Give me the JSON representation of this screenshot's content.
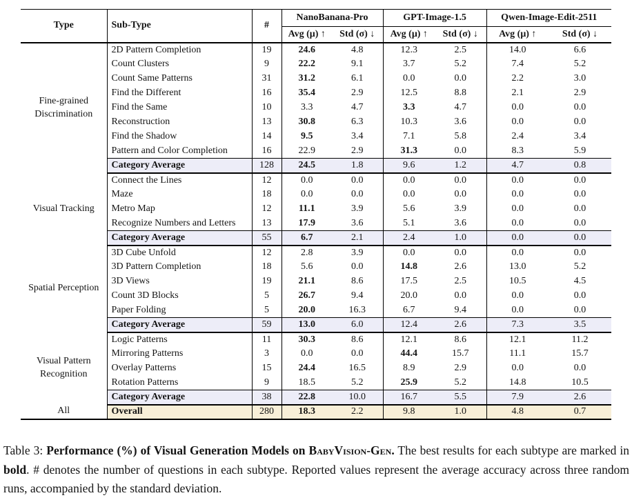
{
  "table": {
    "fixed_headers": [
      {
        "label": "Type"
      },
      {
        "label": "Sub-Type"
      },
      {
        "label": "#"
      }
    ],
    "groups": [
      {
        "label": "NanoBanana-Pro"
      },
      {
        "label": "GPT-Image-1.5"
      },
      {
        "label": "Qwen-Image-Edit-2511"
      }
    ],
    "subheaders": {
      "avg": "Avg (μ) ↑",
      "std": "Std (σ) ↓"
    },
    "sections": [
      {
        "type": "Fine-grained Discrimination",
        "rows": [
          {
            "subtype": "2D Pattern Completion",
            "n": "19",
            "values": [
              "24.6",
              "4.8",
              "12.3",
              "2.5",
              "14.0",
              "6.6"
            ],
            "bold": [
              0
            ]
          },
          {
            "subtype": "Count Clusters",
            "n": "9",
            "values": [
              "22.2",
              "9.1",
              "3.7",
              "5.2",
              "7.4",
              "5.2"
            ],
            "bold": [
              0
            ]
          },
          {
            "subtype": "Count Same Patterns",
            "n": "31",
            "values": [
              "31.2",
              "6.1",
              "0.0",
              "0.0",
              "2.2",
              "3.0"
            ],
            "bold": [
              0
            ]
          },
          {
            "subtype": "Find the Different",
            "n": "16",
            "values": [
              "35.4",
              "2.9",
              "12.5",
              "8.8",
              "2.1",
              "2.9"
            ],
            "bold": [
              0
            ]
          },
          {
            "subtype": "Find the Same",
            "n": "10",
            "values": [
              "3.3",
              "4.7",
              "3.3",
              "4.7",
              "0.0",
              "0.0"
            ],
            "bold": [
              2
            ]
          },
          {
            "subtype": "Reconstruction",
            "n": "13",
            "values": [
              "30.8",
              "6.3",
              "10.3",
              "3.6",
              "0.0",
              "0.0"
            ],
            "bold": [
              0
            ]
          },
          {
            "subtype": "Find the Shadow",
            "n": "14",
            "values": [
              "9.5",
              "3.4",
              "7.1",
              "5.8",
              "2.4",
              "3.4"
            ],
            "bold": [
              0
            ]
          },
          {
            "subtype": "Pattern and Color Completion",
            "n": "16",
            "values": [
              "22.9",
              "2.9",
              "31.3",
              "0.0",
              "8.3",
              "5.9"
            ],
            "bold": [
              2
            ]
          }
        ],
        "average": {
          "label": "Category Average",
          "n": "128",
          "values": [
            "24.5",
            "1.8",
            "9.6",
            "1.2",
            "4.7",
            "0.8"
          ],
          "bold": [
            0
          ]
        }
      },
      {
        "type": "Visual Tracking",
        "rows": [
          {
            "subtype": "Connect the Lines",
            "n": "12",
            "values": [
              "0.0",
              "0.0",
              "0.0",
              "0.0",
              "0.0",
              "0.0"
            ],
            "bold": []
          },
          {
            "subtype": "Maze",
            "n": "18",
            "values": [
              "0.0",
              "0.0",
              "0.0",
              "0.0",
              "0.0",
              "0.0"
            ],
            "bold": []
          },
          {
            "subtype": "Metro Map",
            "n": "12",
            "values": [
              "11.1",
              "3.9",
              "5.6",
              "3.9",
              "0.0",
              "0.0"
            ],
            "bold": [
              0
            ]
          },
          {
            "subtype": "Recognize Numbers and Letters",
            "n": "13",
            "values": [
              "17.9",
              "3.6",
              "5.1",
              "3.6",
              "0.0",
              "0.0"
            ],
            "bold": [
              0
            ]
          }
        ],
        "average": {
          "label": "Category Average",
          "n": "55",
          "values": [
            "6.7",
            "2.1",
            "2.4",
            "1.0",
            "0.0",
            "0.0"
          ],
          "bold": [
            0
          ]
        }
      },
      {
        "type": "Spatial Perception",
        "rows": [
          {
            "subtype": "3D Cube Unfold",
            "n": "12",
            "values": [
              "2.8",
              "3.9",
              "0.0",
              "0.0",
              "0.0",
              "0.0"
            ],
            "bold": []
          },
          {
            "subtype": "3D Pattern Completion",
            "n": "18",
            "values": [
              "5.6",
              "0.0",
              "14.8",
              "2.6",
              "13.0",
              "5.2"
            ],
            "bold": [
              2
            ]
          },
          {
            "subtype": "3D Views",
            "n": "19",
            "values": [
              "21.1",
              "8.6",
              "17.5",
              "2.5",
              "10.5",
              "4.5"
            ],
            "bold": [
              0
            ]
          },
          {
            "subtype": "Count 3D Blocks",
            "n": "5",
            "values": [
              "26.7",
              "9.4",
              "20.0",
              "0.0",
              "0.0",
              "0.0"
            ],
            "bold": [
              0
            ]
          },
          {
            "subtype": "Paper Folding",
            "n": "5",
            "values": [
              "20.0",
              "16.3",
              "6.7",
              "9.4",
              "0.0",
              "0.0"
            ],
            "bold": [
              0
            ]
          }
        ],
        "average": {
          "label": "Category Average",
          "n": "59",
          "values": [
            "13.0",
            "6.0",
            "12.4",
            "2.6",
            "7.3",
            "3.5"
          ],
          "bold": [
            0
          ]
        }
      },
      {
        "type": "Visual Pattern Recognition",
        "rows": [
          {
            "subtype": "Logic Patterns",
            "n": "11",
            "values": [
              "30.3",
              "8.6",
              "12.1",
              "8.6",
              "12.1",
              "11.2"
            ],
            "bold": [
              0
            ]
          },
          {
            "subtype": "Mirroring Patterns",
            "n": "3",
            "values": [
              "0.0",
              "0.0",
              "44.4",
              "15.7",
              "11.1",
              "15.7"
            ],
            "bold": [
              2
            ]
          },
          {
            "subtype": "Overlay Patterns",
            "n": "15",
            "values": [
              "24.4",
              "16.5",
              "8.9",
              "2.9",
              "0.0",
              "0.0"
            ],
            "bold": [
              0
            ]
          },
          {
            "subtype": "Rotation Patterns",
            "n": "9",
            "values": [
              "18.5",
              "5.2",
              "25.9",
              "5.2",
              "14.8",
              "10.5"
            ],
            "bold": [
              2
            ]
          }
        ],
        "average": {
          "label": "Category Average",
          "n": "38",
          "values": [
            "22.8",
            "10.0",
            "16.7",
            "5.5",
            "7.9",
            "2.6"
          ],
          "bold": [
            0
          ]
        }
      }
    ],
    "overall": {
      "type": "All",
      "label": "Overall",
      "n": "280",
      "values": [
        "18.3",
        "2.2",
        "9.8",
        "1.0",
        "4.8",
        "0.7"
      ],
      "bold": [
        0
      ]
    }
  },
  "caption": {
    "segments": [
      {
        "text": "Table 3: ",
        "bold": false,
        "smallcaps": false
      },
      {
        "text": "Performance (%) of Visual Generation Models on ",
        "bold": true,
        "smallcaps": false
      },
      {
        "text": "BabyVision-Gen",
        "bold": true,
        "smallcaps": true
      },
      {
        "text": ".",
        "bold": true,
        "smallcaps": false
      },
      {
        "text": " The best results for each subtype are marked in ",
        "bold": false,
        "smallcaps": false
      },
      {
        "text": "bold",
        "bold": true,
        "smallcaps": false
      },
      {
        "text": ". # denotes the number of questions in each subtype. Reported values represent the average accuracy across three random runs, accompanied by the standard deviation.",
        "bold": false,
        "smallcaps": false
      }
    ]
  },
  "colors": {
    "category_average_row": "#ededf8",
    "overall_row": "#f8efd8",
    "rule": "#000000",
    "text": "#141414"
  }
}
